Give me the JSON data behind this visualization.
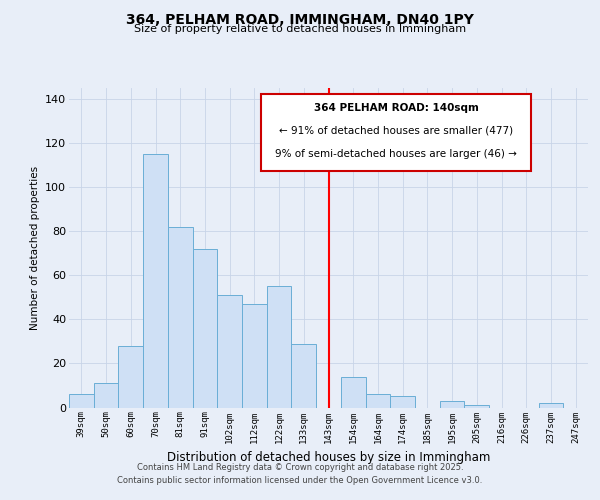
{
  "title": "364, PELHAM ROAD, IMMINGHAM, DN40 1PY",
  "subtitle": "Size of property relative to detached houses in Immingham",
  "xlabel": "Distribution of detached houses by size in Immingham",
  "ylabel": "Number of detached properties",
  "categories": [
    "39sqm",
    "50sqm",
    "60sqm",
    "70sqm",
    "81sqm",
    "91sqm",
    "102sqm",
    "112sqm",
    "122sqm",
    "133sqm",
    "143sqm",
    "154sqm",
    "164sqm",
    "174sqm",
    "185sqm",
    "195sqm",
    "205sqm",
    "216sqm",
    "226sqm",
    "237sqm",
    "247sqm"
  ],
  "values": [
    6,
    11,
    28,
    115,
    82,
    72,
    51,
    47,
    55,
    29,
    0,
    14,
    6,
    5,
    0,
    3,
    1,
    0,
    0,
    2,
    0
  ],
  "bar_color": "#cfe0f5",
  "bar_edge_color": "#6aaed6",
  "vline_index": 10,
  "vline_color": "red",
  "ylim": [
    0,
    145
  ],
  "yticks": [
    0,
    20,
    40,
    60,
    80,
    100,
    120,
    140
  ],
  "annotation_title": "364 PELHAM ROAD: 140sqm",
  "annotation_line1": "← 91% of detached houses are smaller (477)",
  "annotation_line2": "9% of semi-detached houses are larger (46) →",
  "annotation_box_color": "#ffffff",
  "annotation_box_edge": "#cc0000",
  "footer_line1": "Contains HM Land Registry data © Crown copyright and database right 2025.",
  "footer_line2": "Contains public sector information licensed under the Open Government Licence v3.0.",
  "background_color": "#e8eef8",
  "plot_bg_color": "#e8eef8",
  "grid_color": "#c8d4e8"
}
